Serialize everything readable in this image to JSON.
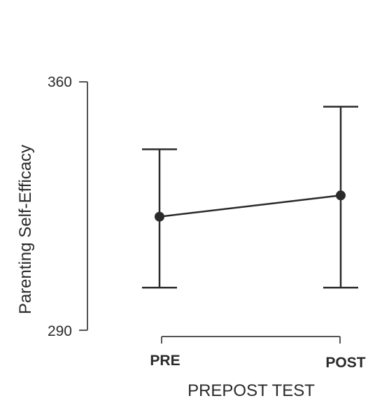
{
  "chart_data": {
    "type": "line",
    "title": "",
    "xlabel": "PREPOST TEST",
    "ylabel": "Parenting Self-Efficacy",
    "categories": [
      "PRE",
      "POST"
    ],
    "ylim": [
      290,
      360
    ],
    "yticks": [
      "290",
      "360"
    ],
    "grid": false,
    "series": [
      {
        "values": [
          322,
          328
        ],
        "error_low": [
          302,
          302
        ],
        "error_high": [
          341,
          353
        ]
      }
    ],
    "colors": {
      "line": "#2a2a2a",
      "marker": "#2a2a2a",
      "axis": "#555555"
    }
  }
}
